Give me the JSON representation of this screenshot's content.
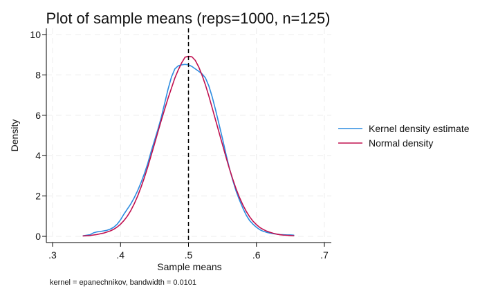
{
  "chart_data": {
    "type": "line",
    "title": "Plot of sample means (reps=1000, n=125)",
    "xlabel": "Sample means",
    "ylabel": "Density",
    "note": "kernel = epanechnikov, bandwidth = 0.0101",
    "xlim": [
      0.3,
      0.7
    ],
    "ylim": [
      0,
      10
    ],
    "x_ticks": [
      0.3,
      0.4,
      0.5,
      0.6,
      0.7
    ],
    "x_tick_labels": [
      ".3",
      ".4",
      ".5",
      ".6",
      ".7"
    ],
    "y_ticks": [
      0,
      2,
      4,
      6,
      8,
      10
    ],
    "y_tick_labels": [
      "0",
      "2",
      "4",
      "6",
      "8",
      "10"
    ],
    "grid": true,
    "legend_position": "right",
    "reference_line": {
      "x": 0.5,
      "style": "dashed",
      "color": "#000000"
    },
    "series": [
      {
        "name": "Kernel density estimate",
        "color": "#2b8be0",
        "x": [
          0.345,
          0.355,
          0.36,
          0.365,
          0.37,
          0.375,
          0.38,
          0.385,
          0.39,
          0.395,
          0.4,
          0.405,
          0.41,
          0.415,
          0.42,
          0.425,
          0.43,
          0.435,
          0.44,
          0.445,
          0.45,
          0.455,
          0.46,
          0.465,
          0.47,
          0.475,
          0.48,
          0.485,
          0.49,
          0.495,
          0.5,
          0.505,
          0.51,
          0.515,
          0.52,
          0.525,
          0.53,
          0.535,
          0.54,
          0.545,
          0.55,
          0.555,
          0.56,
          0.565,
          0.57,
          0.575,
          0.58,
          0.585,
          0.59,
          0.595,
          0.6,
          0.605,
          0.61,
          0.615,
          0.62,
          0.625,
          0.63,
          0.635,
          0.64,
          0.645,
          0.65,
          0.655
        ],
        "values": [
          0.03,
          0.08,
          0.17,
          0.22,
          0.24,
          0.27,
          0.3,
          0.36,
          0.45,
          0.6,
          0.82,
          1.1,
          1.35,
          1.6,
          1.9,
          2.25,
          2.65,
          3.1,
          3.6,
          4.2,
          4.75,
          5.3,
          5.9,
          6.6,
          7.3,
          7.9,
          8.3,
          8.45,
          8.5,
          8.52,
          8.5,
          8.42,
          8.3,
          8.18,
          8.05,
          7.85,
          7.45,
          6.9,
          6.25,
          5.55,
          4.85,
          4.1,
          3.4,
          2.8,
          2.25,
          1.8,
          1.4,
          1.05,
          0.78,
          0.6,
          0.45,
          0.33,
          0.25,
          0.2,
          0.16,
          0.13,
          0.11,
          0.09,
          0.08,
          0.07,
          0.07,
          0.06
        ]
      },
      {
        "name": "Normal density",
        "color": "#c0104f",
        "x": [
          0.345,
          0.355,
          0.365,
          0.375,
          0.385,
          0.39,
          0.395,
          0.4,
          0.405,
          0.41,
          0.415,
          0.42,
          0.425,
          0.43,
          0.435,
          0.44,
          0.445,
          0.45,
          0.455,
          0.46,
          0.465,
          0.47,
          0.475,
          0.48,
          0.485,
          0.49,
          0.495,
          0.5,
          0.505,
          0.51,
          0.515,
          0.52,
          0.525,
          0.53,
          0.535,
          0.54,
          0.545,
          0.55,
          0.555,
          0.56,
          0.565,
          0.57,
          0.575,
          0.58,
          0.585,
          0.59,
          0.595,
          0.6,
          0.605,
          0.61,
          0.615,
          0.62,
          0.625,
          0.63,
          0.635,
          0.64,
          0.645,
          0.65,
          0.655
        ],
        "values": [
          0.02,
          0.04,
          0.09,
          0.16,
          0.27,
          0.35,
          0.46,
          0.6,
          0.78,
          1.0,
          1.27,
          1.6,
          1.98,
          2.42,
          2.9,
          3.43,
          4.0,
          4.58,
          5.17,
          5.75,
          6.3,
          6.85,
          7.35,
          7.85,
          8.25,
          8.6,
          8.88,
          8.92,
          8.9,
          8.72,
          8.4,
          7.98,
          7.5,
          6.95,
          6.35,
          5.75,
          5.15,
          4.55,
          3.95,
          3.38,
          2.85,
          2.36,
          1.93,
          1.56,
          1.24,
          0.97,
          0.75,
          0.58,
          0.44,
          0.34,
          0.26,
          0.2,
          0.15,
          0.11,
          0.08,
          0.06,
          0.05,
          0.04,
          0.03
        ]
      }
    ]
  }
}
